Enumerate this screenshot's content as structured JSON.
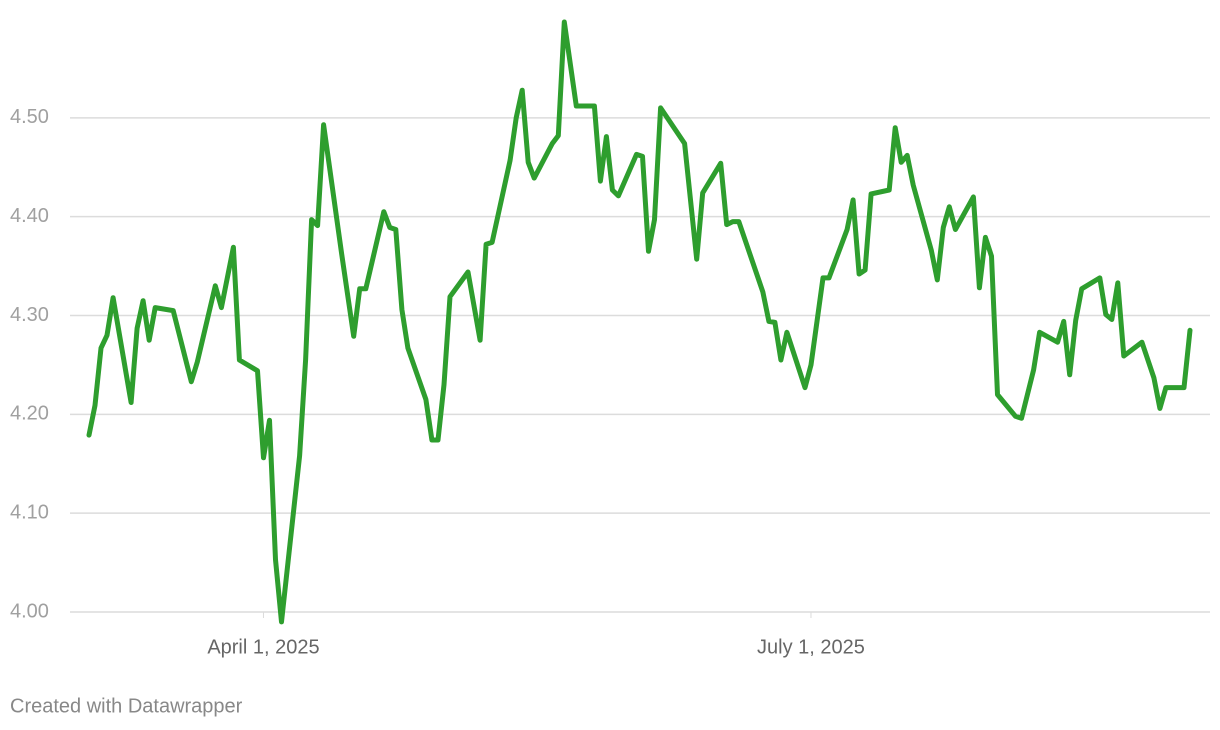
{
  "chart_data": {
    "type": "line",
    "x": [
      "2025-03-03",
      "2025-03-04",
      "2025-03-05",
      "2025-03-06",
      "2025-03-07",
      "2025-03-10",
      "2025-03-11",
      "2025-03-12",
      "2025-03-13",
      "2025-03-14",
      "2025-03-17",
      "2025-03-20",
      "2025-03-21",
      "2025-03-24",
      "2025-03-25",
      "2025-03-27",
      "2025-03-28",
      "2025-03-31",
      "2025-04-01",
      "2025-04-02",
      "2025-04-03",
      "2025-04-04",
      "2025-04-07",
      "2025-04-08",
      "2025-04-09",
      "2025-04-10",
      "2025-04-11",
      "2025-04-14",
      "2025-04-16",
      "2025-04-17",
      "2025-04-18",
      "2025-04-21",
      "2025-04-22",
      "2025-04-23",
      "2025-04-24",
      "2025-04-25",
      "2025-04-28",
      "2025-04-29",
      "2025-04-30",
      "2025-05-01",
      "2025-05-02",
      "2025-05-05",
      "2025-05-07",
      "2025-05-08",
      "2025-05-09",
      "2025-05-12",
      "2025-05-13",
      "2025-05-14",
      "2025-05-15",
      "2025-05-16",
      "2025-05-19",
      "2025-05-20",
      "2025-05-21",
      "2025-05-23",
      "2025-05-24",
      "2025-05-26",
      "2025-05-27",
      "2025-05-28",
      "2025-05-29",
      "2025-05-30",
      "2025-06-02",
      "2025-06-03",
      "2025-06-04",
      "2025-06-05",
      "2025-06-06",
      "2025-06-10",
      "2025-06-12",
      "2025-06-13",
      "2025-06-16",
      "2025-06-17",
      "2025-06-18",
      "2025-06-19",
      "2025-06-23",
      "2025-06-24",
      "2025-06-25",
      "2025-06-26",
      "2025-06-27",
      "2025-06-30",
      "2025-07-01",
      "2025-07-03",
      "2025-07-04",
      "2025-07-07",
      "2025-07-08",
      "2025-07-09",
      "2025-07-10",
      "2025-07-11",
      "2025-07-14",
      "2025-07-15",
      "2025-07-16",
      "2025-07-17",
      "2025-07-18",
      "2025-07-21",
      "2025-07-22",
      "2025-07-23",
      "2025-07-24",
      "2025-07-25",
      "2025-07-28",
      "2025-07-29",
      "2025-07-30",
      "2025-07-31",
      "2025-08-01",
      "2025-08-04",
      "2025-08-05",
      "2025-08-07",
      "2025-08-08",
      "2025-08-11",
      "2025-08-12",
      "2025-08-13",
      "2025-08-14",
      "2025-08-15",
      "2025-08-18",
      "2025-08-19",
      "2025-08-20",
      "2025-08-21",
      "2025-08-22",
      "2025-08-25",
      "2025-08-27",
      "2025-08-28",
      "2025-08-29",
      "2025-09-01",
      "2025-09-02"
    ],
    "values": [
      4.179,
      4.209,
      4.267,
      4.28,
      4.318,
      4.212,
      4.287,
      4.315,
      4.275,
      4.308,
      4.305,
      4.233,
      4.253,
      4.33,
      4.308,
      4.369,
      4.255,
      4.244,
      4.156,
      4.194,
      4.053,
      3.99,
      4.158,
      4.255,
      4.397,
      4.391,
      4.493,
      4.362,
      4.279,
      4.327,
      4.327,
      4.405,
      4.389,
      4.387,
      4.306,
      4.267,
      4.215,
      4.174,
      4.174,
      4.23,
      4.319,
      4.344,
      4.275,
      4.372,
      4.374,
      4.457,
      4.5,
      4.528,
      4.455,
      4.439,
      4.474,
      4.482,
      4.597,
      4.512,
      4.512,
      4.512,
      4.436,
      4.481,
      4.427,
      4.421,
      4.463,
      4.461,
      4.365,
      4.397,
      4.51,
      4.474,
      4.357,
      4.424,
      4.454,
      4.392,
      4.395,
      4.395,
      4.324,
      4.294,
      4.293,
      4.255,
      4.283,
      4.227,
      4.25,
      4.338,
      4.338,
      4.387,
      4.417,
      4.342,
      4.346,
      4.423,
      4.427,
      4.49,
      4.455,
      4.462,
      4.432,
      4.366,
      4.336,
      4.389,
      4.41,
      4.387,
      4.42,
      4.328,
      4.379,
      4.36,
      4.22,
      4.198,
      4.196,
      4.245,
      4.283,
      4.273,
      4.294,
      4.24,
      4.295,
      4.327,
      4.338,
      4.301,
      4.296,
      4.333,
      4.259,
      4.273,
      4.237,
      4.206,
      4.227,
      4.227,
      4.285
    ],
    "color": "#2e9e2e",
    "xlim": [
      "2025-03-03",
      "2025-09-02"
    ],
    "xticks": [
      {
        "value": "2025-04-01",
        "label": "April 1, 2025"
      },
      {
        "value": "2025-07-01",
        "label": "July 1, 2025"
      }
    ],
    "ylim": [
      4.0,
      4.6
    ],
    "yticks": [
      {
        "value": 4.0,
        "label": "4.00"
      },
      {
        "value": 4.1,
        "label": "4.10"
      },
      {
        "value": 4.2,
        "label": "4.20"
      },
      {
        "value": 4.3,
        "label": "4.30"
      },
      {
        "value": 4.4,
        "label": "4.40"
      },
      {
        "value": 4.5,
        "label": "4.50"
      }
    ],
    "grid": true,
    "credit": "Created with Datawrapper"
  }
}
